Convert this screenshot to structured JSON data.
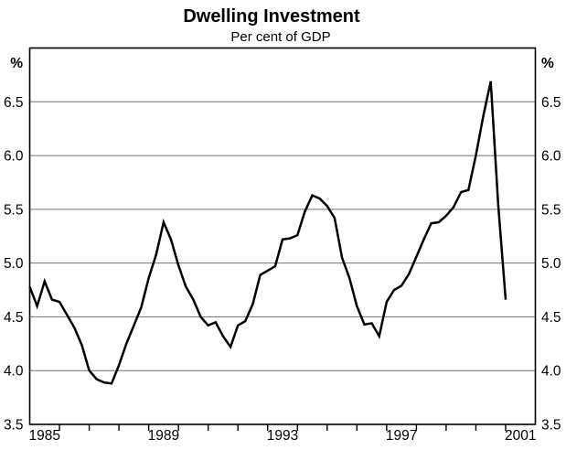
{
  "title": "Dwelling Investment",
  "subtitle": "Per cent of GDP",
  "chart_data": {
    "type": "line",
    "title": "Dwelling Investment",
    "subtitle": "Per cent of GDP",
    "y_unit": "%",
    "ylim": [
      3.5,
      7.0
    ],
    "y_tick_interval": 0.5,
    "grid": true,
    "legend_position": "none",
    "line_color": "#000000",
    "grid_color": "#707070",
    "y_gridline_values": [
      4.0,
      4.5,
      5.0,
      5.5,
      6.0,
      6.5
    ],
    "y_tick_labels": [
      {
        "text": "6.5",
        "value": 6.5
      },
      {
        "text": "6.0",
        "value": 6.0
      },
      {
        "text": "5.5",
        "value": 5.5
      },
      {
        "text": "5.0",
        "value": 5.0
      },
      {
        "text": "4.5",
        "value": 4.5
      },
      {
        "text": "4.0",
        "value": 4.0
      },
      {
        "text": "3.5",
        "value": 3.5
      }
    ],
    "x_years_range": [
      1985,
      2002
    ],
    "x_minor_tick_years": [
      1986,
      1987,
      1988,
      1989,
      1990,
      1991,
      1992,
      1993,
      1994,
      1995,
      1996,
      1997,
      1998,
      1999,
      2000,
      2001
    ],
    "x_axis_labels": [
      {
        "text": "1985",
        "center_year": 1985.5
      },
      {
        "text": "1989",
        "center_year": 1989.5
      },
      {
        "text": "1993",
        "center_year": 1993.5
      },
      {
        "text": "1997",
        "center_year": 1997.5
      },
      {
        "text": "2001",
        "center_year": 2001.5
      }
    ],
    "series": [
      {
        "name": "Dwelling investment, per cent of GDP",
        "frequency": "quarterly",
        "start_period": "1984Q4",
        "end_period": "2000Q4",
        "first_point_year_position": 1985.0,
        "points_per_year": 4,
        "values": [
          4.78,
          4.6,
          4.83,
          4.66,
          4.64,
          4.52,
          4.4,
          4.24,
          4.0,
          3.92,
          3.89,
          3.88,
          4.05,
          4.25,
          4.42,
          4.59,
          4.86,
          5.08,
          5.38,
          5.22,
          4.98,
          4.78,
          4.66,
          4.5,
          4.42,
          4.45,
          4.32,
          4.22,
          4.42,
          4.46,
          4.62,
          4.89,
          4.93,
          4.97,
          5.22,
          5.23,
          5.26,
          5.48,
          5.63,
          5.6,
          5.53,
          5.42,
          5.05,
          4.86,
          4.6,
          4.43,
          4.44,
          4.32,
          4.64,
          4.75,
          4.79,
          4.9,
          5.06,
          5.22,
          5.37,
          5.38,
          5.44,
          5.52,
          5.66,
          5.68,
          6.0,
          6.37,
          6.69,
          5.55,
          4.66
        ]
      }
    ]
  }
}
